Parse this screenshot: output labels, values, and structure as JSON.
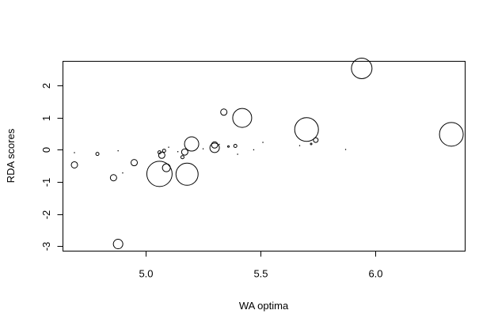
{
  "chart_data": {
    "type": "scatter",
    "title": "",
    "xlabel": "WA optima",
    "ylabel": "RDA scores",
    "xlim": [
      4.64,
      6.39
    ],
    "ylim": [
      -3.15,
      2.75
    ],
    "xticks": [
      5.0,
      5.5,
      6.0
    ],
    "xtick_labels": [
      "5.0",
      "5.5",
      "6.0"
    ],
    "yticks": [
      -3,
      -2,
      -1,
      0,
      1,
      2
    ],
    "ytick_labels": [
      "-3",
      "-2",
      "-1",
      "0",
      "1",
      "2"
    ],
    "grid": false,
    "legend": "none",
    "marker": "open-circle, size proportional to weight",
    "colors": {
      "stroke": "#000000",
      "background": "#ffffff"
    },
    "points": [
      {
        "x": 4.69,
        "y": -0.09,
        "size": 0.3
      },
      {
        "x": 4.69,
        "y": -0.47,
        "size": 4
      },
      {
        "x": 4.79,
        "y": -0.13,
        "size": 2
      },
      {
        "x": 4.86,
        "y": -0.87,
        "size": 4
      },
      {
        "x": 4.88,
        "y": -2.93,
        "size": 6
      },
      {
        "x": 4.88,
        "y": -0.03,
        "size": 0.3
      },
      {
        "x": 4.9,
        "y": -0.72,
        "size": 0.3
      },
      {
        "x": 4.95,
        "y": -0.4,
        "size": 4
      },
      {
        "x": 5.06,
        "y": -0.75,
        "size": 16
      },
      {
        "x": 5.06,
        "y": -0.08,
        "size": 2
      },
      {
        "x": 5.07,
        "y": -0.17,
        "size": 4
      },
      {
        "x": 5.08,
        "y": -0.03,
        "size": 2
      },
      {
        "x": 5.09,
        "y": -0.56,
        "size": 5
      },
      {
        "x": 5.1,
        "y": 0.08,
        "size": 0.3
      },
      {
        "x": 5.14,
        "y": -0.06,
        "size": 0.3
      },
      {
        "x": 5.16,
        "y": -0.23,
        "size": 2
      },
      {
        "x": 5.17,
        "y": -0.07,
        "size": 4
      },
      {
        "x": 5.18,
        "y": -0.76,
        "size": 14
      },
      {
        "x": 5.2,
        "y": 0.18,
        "size": 9
      },
      {
        "x": 5.25,
        "y": 0.03,
        "size": 0.3
      },
      {
        "x": 5.3,
        "y": 0.06,
        "size": 6
      },
      {
        "x": 5.3,
        "y": 0.15,
        "size": 4
      },
      {
        "x": 5.32,
        "y": 0.17,
        "size": 0.3
      },
      {
        "x": 5.34,
        "y": 1.17,
        "size": 4
      },
      {
        "x": 5.36,
        "y": 0.1,
        "size": 1
      },
      {
        "x": 5.39,
        "y": 0.12,
        "size": 2
      },
      {
        "x": 5.4,
        "y": -0.14,
        "size": 0.3
      },
      {
        "x": 5.42,
        "y": 0.99,
        "size": 12
      },
      {
        "x": 5.47,
        "y": 0.0,
        "size": 0.3
      },
      {
        "x": 5.51,
        "y": 0.23,
        "size": 0.3
      },
      {
        "x": 5.67,
        "y": 0.13,
        "size": 0.3
      },
      {
        "x": 5.7,
        "y": 0.63,
        "size": 15
      },
      {
        "x": 5.72,
        "y": 0.18,
        "size": 1
      },
      {
        "x": 5.74,
        "y": 0.3,
        "size": 3
      },
      {
        "x": 5.87,
        "y": 0.01,
        "size": 0.3
      },
      {
        "x": 5.94,
        "y": 2.53,
        "size": 13
      },
      {
        "x": 6.33,
        "y": 0.48,
        "size": 15
      }
    ]
  }
}
